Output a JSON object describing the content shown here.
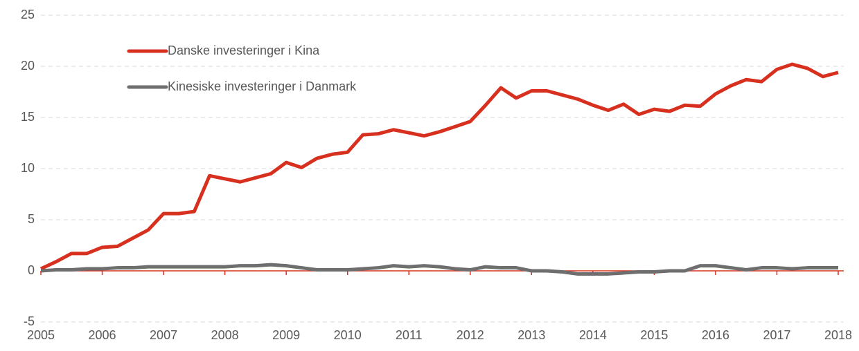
{
  "chart_data": {
    "type": "line",
    "categories": [
      "2005",
      null,
      null,
      null,
      "2006",
      null,
      null,
      null,
      "2007",
      null,
      null,
      null,
      "2008",
      null,
      null,
      null,
      "2009",
      null,
      null,
      null,
      "2010",
      null,
      null,
      null,
      "2011",
      null,
      null,
      null,
      "2012",
      null,
      null,
      null,
      "2013",
      null,
      null,
      null,
      "2014",
      null,
      null,
      null,
      "2015",
      null,
      null,
      null,
      "2016",
      null,
      null,
      null,
      "2017",
      null,
      null,
      null,
      "2018"
    ],
    "series": [
      {
        "name": "Danske investeringer i Kina",
        "color": "#d7301f",
        "values": [
          0.2,
          0.9,
          1.7,
          1.7,
          2.3,
          2.4,
          3.2,
          4.0,
          5.6,
          5.6,
          5.8,
          9.3,
          9.0,
          8.7,
          9.1,
          9.5,
          10.6,
          10.1,
          11.0,
          11.4,
          11.6,
          13.3,
          13.4,
          13.8,
          13.5,
          13.2,
          13.6,
          14.1,
          14.6,
          16.2,
          17.9,
          16.9,
          17.6,
          17.6,
          17.2,
          16.8,
          16.2,
          15.7,
          16.3,
          15.3,
          15.8,
          15.6,
          16.2,
          16.1,
          17.3,
          18.1,
          18.7,
          18.5,
          19.7,
          20.2,
          19.8,
          19.0,
          19.4
        ]
      },
      {
        "name": "Kinesiske investeringer i Danmark",
        "color": "#6e6e6e",
        "values": [
          0,
          0.1,
          0.1,
          0.2,
          0.2,
          0.3,
          0.3,
          0.4,
          0.4,
          0.4,
          0.4,
          0.4,
          0.4,
          0.5,
          0.5,
          0.6,
          0.5,
          0.3,
          0.1,
          0.1,
          0.1,
          0.2,
          0.3,
          0.5,
          0.4,
          0.5,
          0.4,
          0.2,
          0.1,
          0.4,
          0.3,
          0.3,
          0,
          0,
          -0.1,
          -0.3,
          -0.3,
          -0.3,
          -0.2,
          -0.1,
          -0.1,
          0,
          0,
          0.5,
          0.5,
          0.3,
          0.1,
          0.3,
          0.3,
          0.2,
          0.3,
          0.3,
          0.3
        ]
      }
    ],
    "ylim": [
      -5,
      25
    ],
    "yticks": [
      -5,
      0,
      5,
      10,
      15,
      20,
      25
    ],
    "grid": true,
    "axis_color": "#d7301f"
  }
}
